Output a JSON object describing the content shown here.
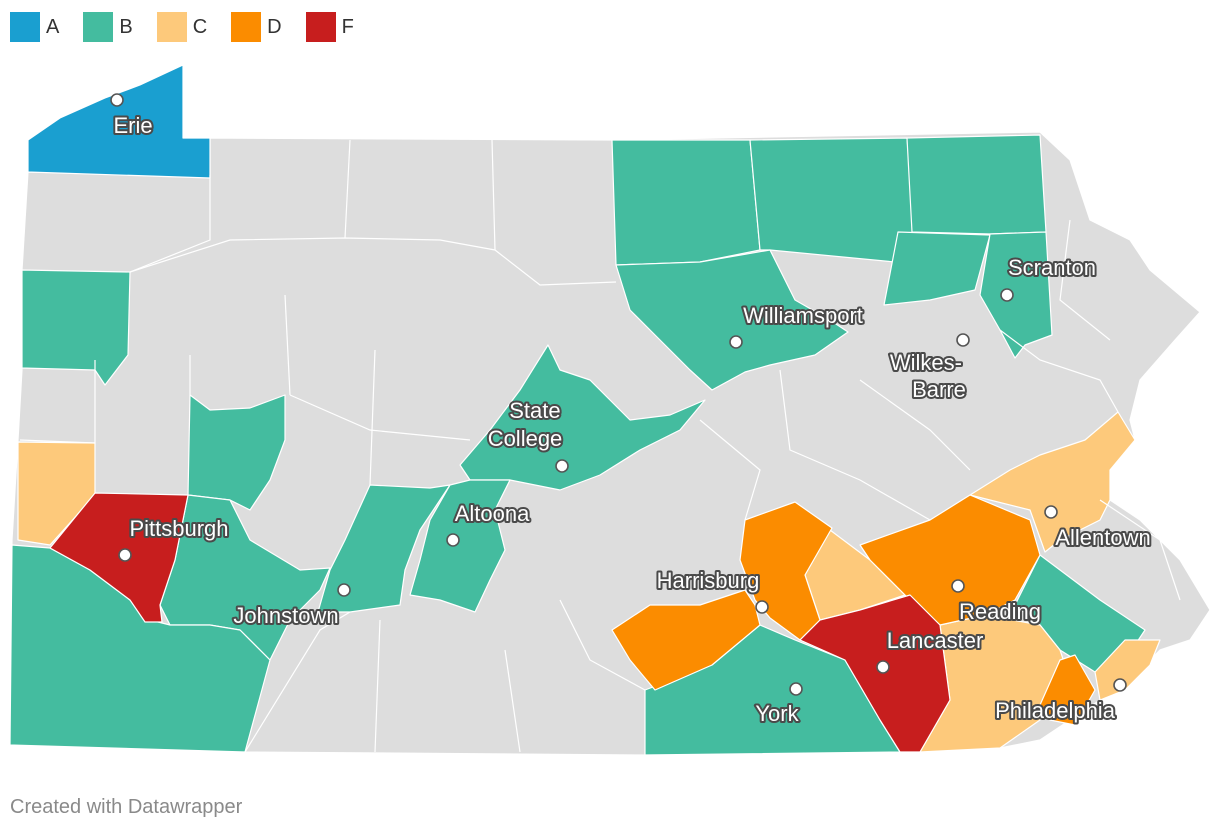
{
  "colors": {
    "A": "#1a9fd0",
    "B": "#44bc9f",
    "C": "#fdc97b",
    "D": "#fb8c00",
    "F": "#c71e1e",
    "none": "#dddddd"
  },
  "legend": [
    {
      "grade": "A",
      "label": "A"
    },
    {
      "grade": "B",
      "label": "B"
    },
    {
      "grade": "C",
      "label": "C"
    },
    {
      "grade": "D",
      "label": "D"
    },
    {
      "grade": "F",
      "label": "F"
    }
  ],
  "cities": [
    {
      "id": "erie",
      "label": "Erie"
    },
    {
      "id": "scranton",
      "label": "Scranton"
    },
    {
      "id": "williamsport",
      "label": "Williamsport"
    },
    {
      "id": "wilkes-barre",
      "label_lines": [
        "Wilkes-",
        "Barre"
      ]
    },
    {
      "id": "state-college",
      "label_lines": [
        "State",
        "College"
      ]
    },
    {
      "id": "altoona",
      "label": "Altoona"
    },
    {
      "id": "pittsburgh",
      "label": "Pittsburgh"
    },
    {
      "id": "johnstown",
      "label": "Johnstown"
    },
    {
      "id": "harrisburg",
      "label": "Harrisburg"
    },
    {
      "id": "allentown",
      "label": "Allentown"
    },
    {
      "id": "reading",
      "label": "Reading"
    },
    {
      "id": "lancaster",
      "label": "Lancaster"
    },
    {
      "id": "york",
      "label": "York"
    },
    {
      "id": "philadelphia",
      "label": "Philadelphia"
    }
  ],
  "footer": {
    "credit": "Created with Datawrapper"
  }
}
